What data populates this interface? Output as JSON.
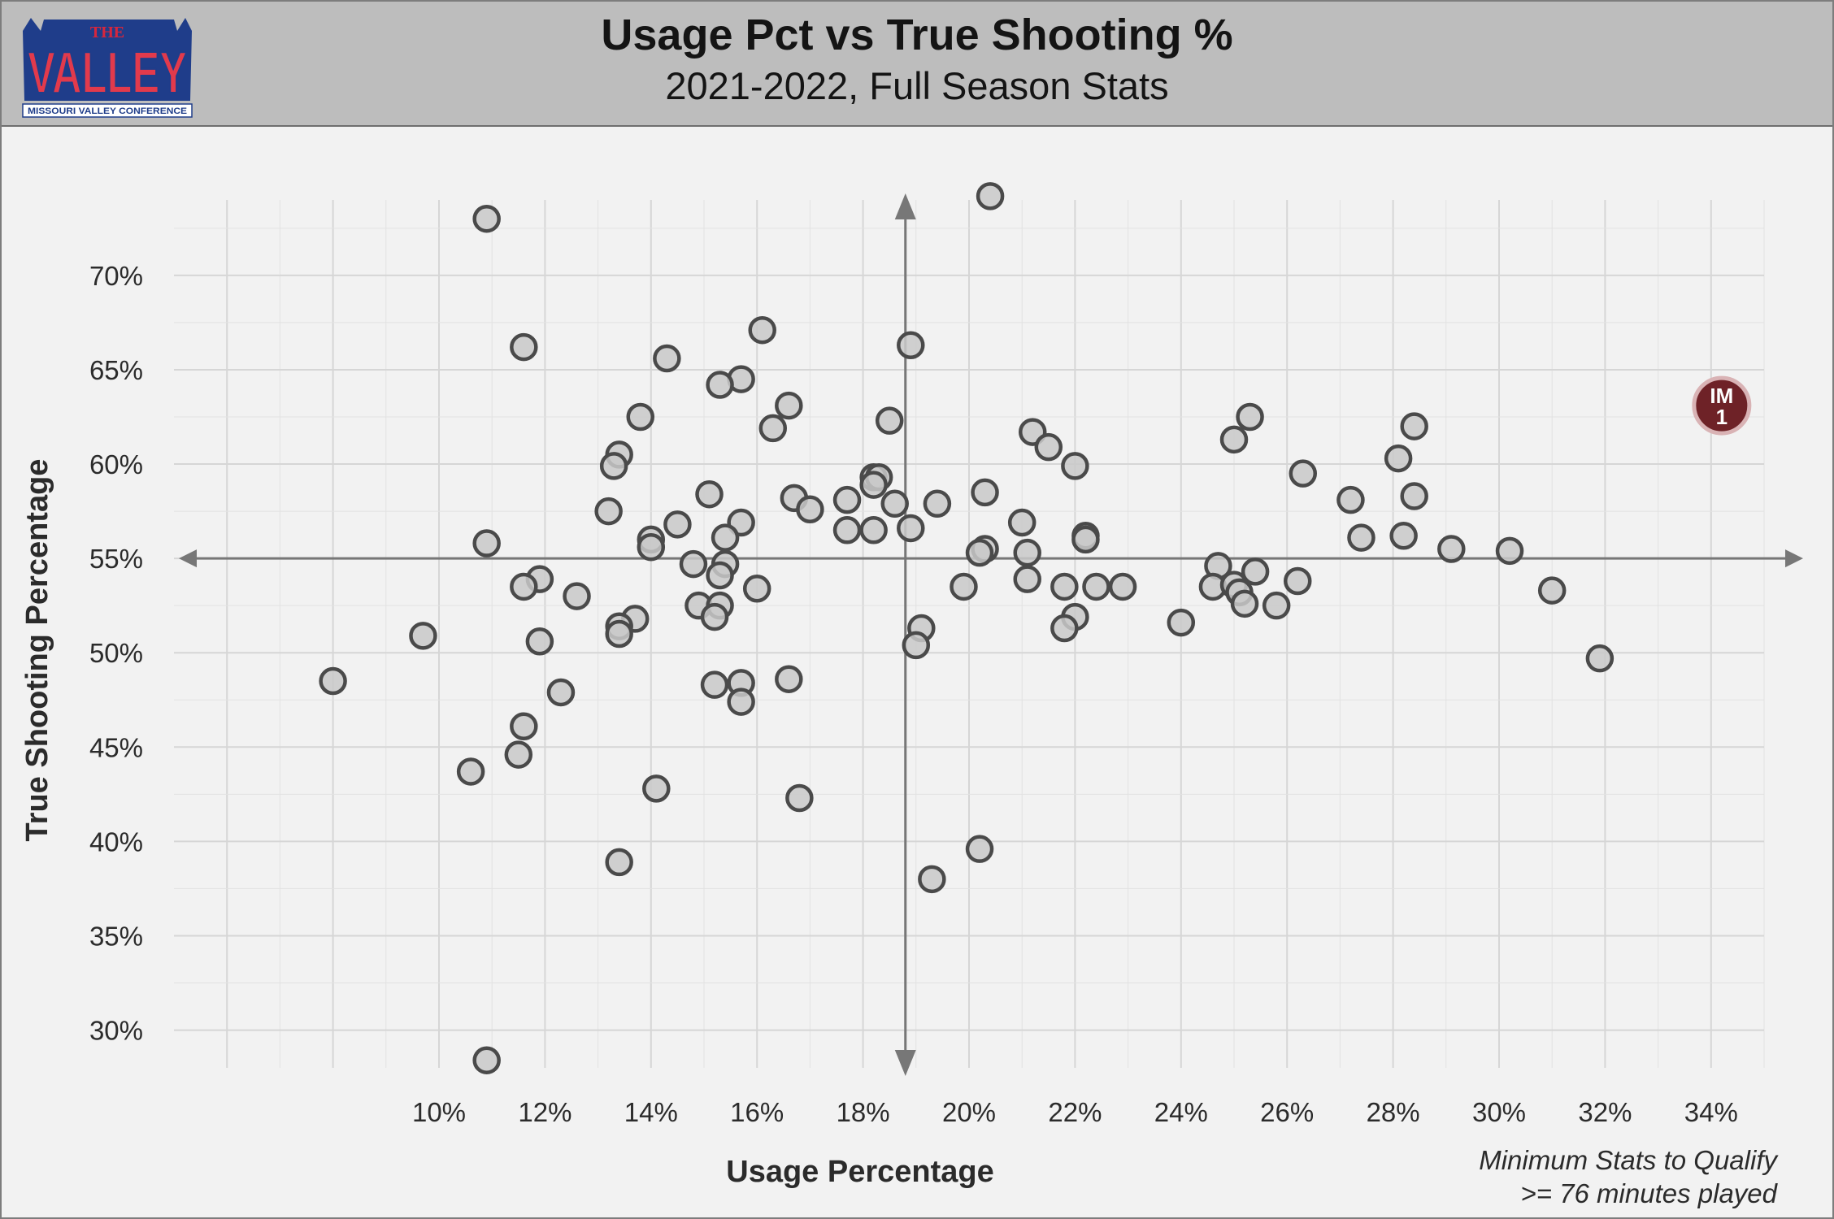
{
  "header": {
    "title": "Usage Pct vs True Shooting %",
    "subtitle": "2021-2022, Full Season Stats",
    "logo": {
      "top_text": "THE",
      "main_text": "VALLEY",
      "tagline": "MISSOURI VALLEY CONFERENCE"
    }
  },
  "footnote": {
    "line1": "Minimum Stats to Qualify",
    "line2": ">= 76 minutes played"
  },
  "chart_data": {
    "type": "scatter",
    "title": "Usage Pct vs True Shooting %",
    "subtitle": "2021-2022, Full Season Stats",
    "xlabel": "Usage Percentage",
    "ylabel": "True Shooting Percentage",
    "xlim": [
      5.0,
      35.0
    ],
    "ylim": [
      28.0,
      74.0
    ],
    "x_ticks": [
      10,
      12,
      14,
      16,
      18,
      20,
      22,
      24,
      26,
      28,
      30,
      32,
      34
    ],
    "y_ticks": [
      30,
      35,
      40,
      45,
      50,
      55,
      60,
      65,
      70
    ],
    "x_tick_labels": [
      "10%",
      "12%",
      "14%",
      "16%",
      "18%",
      "20%",
      "22%",
      "24%",
      "26%",
      "28%",
      "30%",
      "32%",
      "34%"
    ],
    "y_tick_labels": [
      "30%",
      "35%",
      "40%",
      "45%",
      "50%",
      "55%",
      "60%",
      "65%",
      "70%"
    ],
    "grid": true,
    "reference_lines": {
      "x": 18.8,
      "y": 55.0
    },
    "colors": {
      "point_fill": "#c9c9c9",
      "point_stroke": "#4a4a4a",
      "highlight_fill": "#6e2227",
      "axis_line": "#777777"
    },
    "highlight": {
      "label_line1": "IM",
      "label_line2": "1",
      "x": 34.2,
      "y": 63.1
    },
    "points": [
      [
        10.9,
        73.0
      ],
      [
        20.4,
        74.2
      ],
      [
        11.6,
        66.2
      ],
      [
        16.1,
        67.1
      ],
      [
        14.3,
        65.6
      ],
      [
        18.9,
        66.3
      ],
      [
        15.7,
        64.5
      ],
      [
        15.3,
        64.2
      ],
      [
        16.6,
        63.1
      ],
      [
        13.8,
        62.5
      ],
      [
        18.5,
        62.3
      ],
      [
        16.3,
        61.9
      ],
      [
        21.2,
        61.7
      ],
      [
        25.3,
        62.5
      ],
      [
        28.4,
        62.0
      ],
      [
        21.5,
        60.9
      ],
      [
        25.0,
        61.3
      ],
      [
        13.4,
        60.5
      ],
      [
        13.3,
        59.9
      ],
      [
        22.0,
        59.9
      ],
      [
        28.1,
        60.3
      ],
      [
        26.3,
        59.5
      ],
      [
        18.2,
        59.3
      ],
      [
        18.3,
        59.3
      ],
      [
        18.2,
        58.9
      ],
      [
        20.3,
        58.5
      ],
      [
        15.1,
        58.4
      ],
      [
        16.7,
        58.2
      ],
      [
        17.7,
        58.1
      ],
      [
        18.6,
        57.9
      ],
      [
        19.4,
        57.9
      ],
      [
        17.0,
        57.6
      ],
      [
        27.2,
        58.1
      ],
      [
        28.4,
        58.3
      ],
      [
        13.2,
        57.5
      ],
      [
        21.0,
        56.9
      ],
      [
        15.7,
        56.9
      ],
      [
        14.5,
        56.8
      ],
      [
        17.7,
        56.5
      ],
      [
        18.2,
        56.5
      ],
      [
        18.9,
        56.6
      ],
      [
        22.2,
        56.2
      ],
      [
        22.2,
        56.0
      ],
      [
        15.4,
        56.1
      ],
      [
        14.0,
        56.0
      ],
      [
        14.0,
        55.6
      ],
      [
        10.9,
        55.8
      ],
      [
        27.4,
        56.1
      ],
      [
        28.2,
        56.2
      ],
      [
        20.3,
        55.5
      ],
      [
        20.2,
        55.3
      ],
      [
        21.1,
        55.3
      ],
      [
        29.1,
        55.5
      ],
      [
        30.2,
        55.4
      ],
      [
        14.8,
        54.7
      ],
      [
        15.4,
        54.7
      ],
      [
        24.7,
        54.6
      ],
      [
        25.4,
        54.3
      ],
      [
        15.3,
        54.1
      ],
      [
        11.9,
        53.9
      ],
      [
        11.6,
        53.5
      ],
      [
        21.1,
        53.9
      ],
      [
        26.2,
        53.8
      ],
      [
        16.0,
        53.4
      ],
      [
        19.9,
        53.5
      ],
      [
        21.8,
        53.5
      ],
      [
        22.4,
        53.5
      ],
      [
        22.9,
        53.5
      ],
      [
        24.6,
        53.5
      ],
      [
        25.0,
        53.6
      ],
      [
        25.1,
        53.2
      ],
      [
        12.6,
        53.0
      ],
      [
        31.0,
        53.3
      ],
      [
        14.9,
        52.5
      ],
      [
        15.3,
        52.5
      ],
      [
        25.2,
        52.6
      ],
      [
        25.8,
        52.5
      ],
      [
        15.2,
        51.9
      ],
      [
        13.7,
        51.8
      ],
      [
        22.0,
        51.9
      ],
      [
        13.4,
        51.4
      ],
      [
        24.0,
        51.6
      ],
      [
        21.8,
        51.3
      ],
      [
        13.4,
        51.0
      ],
      [
        19.1,
        51.3
      ],
      [
        9.7,
        50.9
      ],
      [
        11.9,
        50.6
      ],
      [
        19.0,
        50.4
      ],
      [
        31.9,
        49.7
      ],
      [
        8.0,
        48.5
      ],
      [
        15.2,
        48.3
      ],
      [
        15.7,
        48.4
      ],
      [
        16.6,
        48.6
      ],
      [
        12.3,
        47.9
      ],
      [
        15.7,
        47.4
      ],
      [
        11.6,
        46.1
      ],
      [
        11.5,
        44.6
      ],
      [
        10.6,
        43.7
      ],
      [
        14.1,
        42.8
      ],
      [
        16.8,
        42.3
      ],
      [
        13.4,
        38.9
      ],
      [
        20.2,
        39.6
      ],
      [
        19.3,
        38.0
      ],
      [
        10.9,
        28.4
      ]
    ]
  }
}
